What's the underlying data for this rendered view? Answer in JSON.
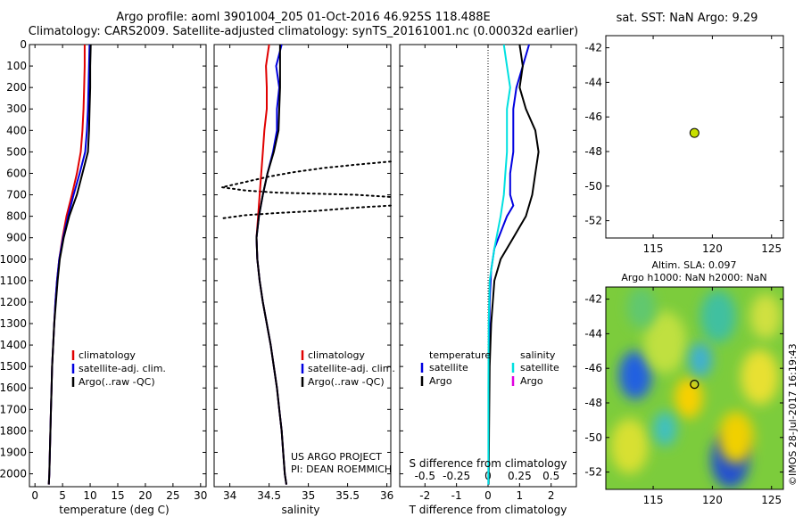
{
  "header": {
    "line1": "Argo profile: aoml 3901004_205 01-Oct-2016 46.925S 118.488E",
    "line2": "Climatology: CARS2009. Satellite-adjusted climatology: synTS_20161001.nc (0.00032d earlier)"
  },
  "credit": "©IMOS 28-Jul-2017 16:19:43",
  "chart_data": [
    {
      "id": "temperature",
      "type": "line",
      "xlabel": "temperature (deg C)",
      "xlim": [
        -1,
        31
      ],
      "xticks": [
        0,
        5,
        10,
        15,
        20,
        25,
        30
      ],
      "ylim": [
        0,
        2060
      ],
      "yticks": [
        0,
        100,
        200,
        300,
        400,
        500,
        600,
        700,
        800,
        900,
        1000,
        1100,
        1200,
        1300,
        1400,
        1500,
        1600,
        1700,
        1800,
        1900,
        2000
      ],
      "legend": [
        "climatology",
        "satellite-adj. clim.",
        "Argo(..raw -QC)"
      ],
      "series": [
        {
          "name": "climatology",
          "color": "#e00000",
          "points": [
            [
              9.0,
              0
            ],
            [
              9.0,
              100
            ],
            [
              8.9,
              200
            ],
            [
              8.8,
              300
            ],
            [
              8.6,
              400
            ],
            [
              8.3,
              500
            ],
            [
              7.6,
              600
            ],
            [
              6.7,
              700
            ],
            [
              5.7,
              800
            ],
            [
              5.0,
              900
            ],
            [
              4.4,
              1000
            ],
            [
              4.0,
              1100
            ],
            [
              3.7,
              1200
            ],
            [
              3.5,
              1300
            ],
            [
              3.3,
              1400
            ],
            [
              3.1,
              1500
            ],
            [
              3.0,
              1600
            ],
            [
              2.9,
              1700
            ],
            [
              2.8,
              1800
            ],
            [
              2.7,
              1900
            ],
            [
              2.6,
              2000
            ],
            [
              2.5,
              2050
            ]
          ]
        },
        {
          "name": "satellite-adj. clim.",
          "color": "#0000e0",
          "points": [
            [
              9.9,
              0
            ],
            [
              9.8,
              100
            ],
            [
              9.7,
              200
            ],
            [
              9.6,
              300
            ],
            [
              9.4,
              400
            ],
            [
              9.1,
              500
            ],
            [
              8.1,
              600
            ],
            [
              7.0,
              700
            ],
            [
              6.0,
              800
            ],
            [
              5.1,
              900
            ],
            [
              4.4,
              1000
            ],
            [
              4.0,
              1100
            ],
            [
              3.7,
              1200
            ],
            [
              3.5,
              1300
            ],
            [
              3.3,
              1400
            ],
            [
              3.1,
              1500
            ],
            [
              3.0,
              1600
            ],
            [
              2.9,
              1700
            ],
            [
              2.8,
              1800
            ],
            [
              2.7,
              1900
            ],
            [
              2.6,
              2000
            ],
            [
              2.5,
              2050
            ]
          ]
        },
        {
          "name": "Argo(..raw -QC)",
          "color": "#000000",
          "points": [
            [
              10.1,
              0
            ],
            [
              10.0,
              100
            ],
            [
              10.0,
              200
            ],
            [
              9.9,
              300
            ],
            [
              9.8,
              400
            ],
            [
              9.6,
              500
            ],
            [
              8.6,
              600
            ],
            [
              7.6,
              700
            ],
            [
              6.2,
              800
            ],
            [
              5.2,
              900
            ],
            [
              4.5,
              1000
            ],
            [
              4.1,
              1100
            ],
            [
              3.8,
              1200
            ],
            [
              3.5,
              1300
            ],
            [
              3.3,
              1400
            ],
            [
              3.1,
              1500
            ],
            [
              3.0,
              1600
            ],
            [
              2.9,
              1700
            ],
            [
              2.8,
              1800
            ],
            [
              2.7,
              1900
            ],
            [
              2.6,
              2000
            ],
            [
              2.5,
              2050
            ]
          ]
        }
      ]
    },
    {
      "id": "salinity",
      "type": "line",
      "xlabel": "salinity",
      "xlim": [
        33.8,
        36.05
      ],
      "xticks": [
        34,
        34.5,
        35,
        35.5,
        36
      ],
      "xticklabels": [
        "34",
        "34.5",
        "35",
        "35.5",
        "36"
      ],
      "ylim": [
        0,
        2060
      ],
      "legend": [
        "climatology",
        "satellite-adj. clim.",
        "Argo(..raw -QC)"
      ],
      "annotation": [
        "US ARGO PROJECT",
        "PI: DEAN ROEMMICH"
      ],
      "series": [
        {
          "name": "climatology",
          "color": "#e00000",
          "points": [
            [
              34.5,
              0
            ],
            [
              34.46,
              100
            ],
            [
              34.47,
              200
            ],
            [
              34.47,
              300
            ],
            [
              34.44,
              400
            ],
            [
              34.42,
              500
            ],
            [
              34.4,
              600
            ],
            [
              34.38,
              700
            ],
            [
              34.36,
              800
            ],
            [
              34.34,
              900
            ],
            [
              34.35,
              1000
            ],
            [
              34.38,
              1100
            ],
            [
              34.42,
              1200
            ],
            [
              34.47,
              1300
            ],
            [
              34.52,
              1400
            ],
            [
              34.56,
              1500
            ],
            [
              34.6,
              1600
            ],
            [
              34.63,
              1700
            ],
            [
              34.66,
              1800
            ],
            [
              34.68,
              1900
            ],
            [
              34.7,
              2000
            ],
            [
              34.72,
              2050
            ]
          ]
        },
        {
          "name": "satellite-adj. clim.",
          "color": "#0000e0",
          "points": [
            [
              34.66,
              0
            ],
            [
              34.59,
              100
            ],
            [
              34.63,
              200
            ],
            [
              34.6,
              300
            ],
            [
              34.6,
              400
            ],
            [
              34.55,
              500
            ],
            [
              34.48,
              600
            ],
            [
              34.42,
              700
            ],
            [
              34.37,
              800
            ],
            [
              34.34,
              900
            ],
            [
              34.35,
              1000
            ],
            [
              34.38,
              1100
            ],
            [
              34.42,
              1200
            ],
            [
              34.47,
              1300
            ],
            [
              34.52,
              1400
            ],
            [
              34.56,
              1500
            ],
            [
              34.6,
              1600
            ],
            [
              34.63,
              1700
            ],
            [
              34.66,
              1800
            ],
            [
              34.68,
              1900
            ],
            [
              34.7,
              2000
            ],
            [
              34.72,
              2050
            ]
          ]
        },
        {
          "name": "Argo(..raw -QC)",
          "color": "#000000",
          "points": [
            [
              34.64,
              0
            ],
            [
              34.64,
              100
            ],
            [
              34.64,
              200
            ],
            [
              34.63,
              300
            ],
            [
              34.62,
              400
            ],
            [
              34.56,
              500
            ],
            [
              34.48,
              600
            ],
            [
              34.42,
              700
            ],
            [
              34.37,
              800
            ],
            [
              34.34,
              900
            ],
            [
              34.35,
              1000
            ],
            [
              34.38,
              1100
            ],
            [
              34.42,
              1200
            ],
            [
              34.47,
              1300
            ],
            [
              34.52,
              1400
            ],
            [
              34.56,
              1500
            ],
            [
              34.6,
              1600
            ],
            [
              34.63,
              1700
            ],
            [
              34.66,
              1800
            ],
            [
              34.68,
              1900
            ],
            [
              34.7,
              2000
            ],
            [
              34.72,
              2050
            ]
          ]
        }
      ],
      "dotted_series": [
        {
          "color": "#000000",
          "points": [
            [
              36.05,
              545
            ],
            [
              35.6,
              560
            ],
            [
              35.2,
              575
            ],
            [
              34.8,
              595
            ],
            [
              34.5,
              615
            ],
            [
              34.2,
              640
            ],
            [
              33.9,
              665
            ],
            [
              34.2,
              680
            ],
            [
              34.6,
              690
            ],
            [
              35.1,
              695
            ],
            [
              35.6,
              700
            ],
            [
              36.05,
              710
            ]
          ]
        },
        {
          "color": "#000000",
          "points": [
            [
              36.05,
              750
            ],
            [
              35.6,
              760
            ],
            [
              35.1,
              775
            ],
            [
              34.6,
              785
            ],
            [
              34.2,
              795
            ],
            [
              33.9,
              810
            ]
          ]
        }
      ]
    },
    {
      "id": "difference",
      "type": "line",
      "xlabel": "T difference from climatology",
      "xlim": [
        -2.8,
        2.8
      ],
      "xticks": [
        -2,
        -1,
        0,
        1,
        2
      ],
      "top_xlabel": "S difference from climatology",
      "top_xticks": [
        -0.5,
        -0.25,
        0,
        0.25,
        0.5
      ],
      "top_xticklabels": [
        "-0.5",
        "-0.25",
        "0",
        "0.25",
        "0.5"
      ],
      "ylim": [
        0,
        2060
      ],
      "legend_titles": [
        "temperature",
        "salinity"
      ],
      "legend_temperature": [
        "satellite",
        "Argo"
      ],
      "legend_salinity": [
        "satellite",
        "Argo"
      ],
      "legend_colors": {
        "t_satellite": "#0000e0",
        "t_argo": "#000000",
        "s_satellite": "#00e0e0",
        "s_argo": "#e000e0"
      },
      "series": [
        {
          "name": "temperature satellite",
          "color": "#0000e0",
          "points": [
            [
              1.3,
              0
            ],
            [
              1.1,
              100
            ],
            [
              0.9,
              200
            ],
            [
              0.8,
              300
            ],
            [
              0.8,
              400
            ],
            [
              0.8,
              500
            ],
            [
              0.7,
              600
            ],
            [
              0.7,
              700
            ],
            [
              0.8,
              750
            ],
            [
              0.6,
              800
            ],
            [
              0.2,
              950
            ],
            [
              0.1,
              1050
            ],
            [
              0.05,
              1200
            ],
            [
              0.03,
              1500
            ],
            [
              0.02,
              1800
            ],
            [
              0.01,
              2050
            ]
          ]
        },
        {
          "name": "temperature Argo",
          "color": "#000000",
          "points": [
            [
              1.0,
              0
            ],
            [
              1.1,
              100
            ],
            [
              1.0,
              200
            ],
            [
              1.2,
              300
            ],
            [
              1.5,
              400
            ],
            [
              1.6,
              500
            ],
            [
              1.5,
              600
            ],
            [
              1.4,
              700
            ],
            [
              1.2,
              800
            ],
            [
              0.8,
              900
            ],
            [
              0.4,
              1000
            ],
            [
              0.2,
              1100
            ],
            [
              0.1,
              1300
            ],
            [
              0.05,
              1500
            ],
            [
              0.03,
              1800
            ],
            [
              0.02,
              2050
            ]
          ]
        },
        {
          "name": "salinity satellite",
          "color": "#00e0e0",
          "points": [
            [
              0.5,
              0
            ],
            [
              0.6,
              100
            ],
            [
              0.7,
              200
            ],
            [
              0.6,
              300
            ],
            [
              0.6,
              400
            ],
            [
              0.6,
              500
            ],
            [
              0.55,
              600
            ],
            [
              0.5,
              700
            ],
            [
              0.4,
              800
            ],
            [
              0.2,
              950
            ],
            [
              0.05,
              1100
            ],
            [
              0.02,
              1300
            ],
            [
              0.01,
              1600
            ],
            [
              0.01,
              2050
            ]
          ]
        }
      ]
    },
    {
      "id": "sst",
      "type": "scatter",
      "title": "sat. SST: NaN Argo: 9.29",
      "xlim": [
        111,
        126
      ],
      "xticks": [
        115,
        120,
        125
      ],
      "ylim": [
        -53,
        -41.3
      ],
      "yticks": [
        -42,
        -44,
        -46,
        -48,
        -50,
        -52
      ],
      "points": [
        {
          "x": 118.488,
          "y": -46.925,
          "color": "#c8e000"
        }
      ]
    },
    {
      "id": "sla",
      "type": "heatmap",
      "title_line1": "Altim. SLA: 0.097",
      "title_line2": "Argo h1000: NaN h2000: NaN",
      "xlim": [
        111,
        126
      ],
      "xticks": [
        115,
        120,
        125
      ],
      "ylim": [
        -53,
        -41.3
      ],
      "yticks": [
        -42,
        -44,
        -46,
        -48,
        -50,
        -52
      ],
      "marker": {
        "x": 118.488,
        "y": -46.925
      },
      "blobs": [
        {
          "x": 113.5,
          "y": -46.4,
          "r": 1.4,
          "color": "#2060e0"
        },
        {
          "x": 121.5,
          "y": -51.3,
          "r": 1.6,
          "color": "#2050d0"
        },
        {
          "x": 118.0,
          "y": -47.7,
          "r": 1.2,
          "color": "#f8d000"
        },
        {
          "x": 122.0,
          "y": -50.0,
          "r": 1.5,
          "color": "#f0d000"
        },
        {
          "x": 124.0,
          "y": -46.5,
          "r": 1.6,
          "color": "#e8e030"
        },
        {
          "x": 116.0,
          "y": -44.5,
          "r": 1.8,
          "color": "#c0e040"
        },
        {
          "x": 120.5,
          "y": -43.0,
          "r": 1.5,
          "color": "#40c0a0"
        },
        {
          "x": 119.0,
          "y": -45.5,
          "r": 1.0,
          "color": "#40b0d0"
        },
        {
          "x": 113.0,
          "y": -50.5,
          "r": 1.6,
          "color": "#d8e030"
        },
        {
          "x": 124.5,
          "y": -43.0,
          "r": 1.3,
          "color": "#d0e040"
        },
        {
          "x": 116.0,
          "y": -49.5,
          "r": 1.0,
          "color": "#40c0c0"
        },
        {
          "x": 114.0,
          "y": -42.5,
          "r": 1.2,
          "color": "#60c870"
        }
      ]
    }
  ]
}
